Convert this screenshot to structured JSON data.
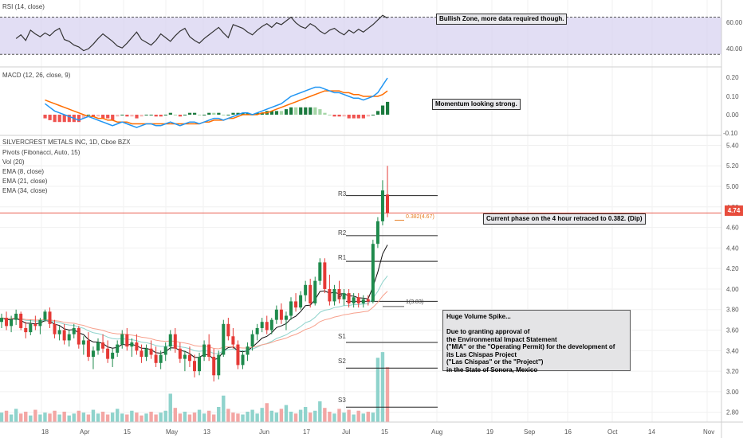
{
  "rsi_panel": {
    "title": "RSI (14, close)",
    "ticks": [
      "60.00",
      "40.00"
    ],
    "annotation": "Bullish Zone, more data required though."
  },
  "macd_panel": {
    "title": "MACD (12, 26, close, 9)",
    "ticks": [
      "0.20",
      "0.10",
      "0.00",
      "-0.10"
    ],
    "annotation": "Momentum looking strong."
  },
  "main_panel": {
    "title": "SILVERCREST METALS INC, 1D, Cboe BZX",
    "studies": [
      "Pivots (Fibonacci, Auto, 15)",
      "Vol (20)",
      "EMA (8, close)",
      "EMA (21, close)",
      "EMA (34, close)"
    ],
    "price_ticks": [
      "5.40",
      "5.20",
      "5.00",
      "4.80",
      "4.60",
      "4.40",
      "4.20",
      "4.00",
      "3.80",
      "3.60",
      "3.40",
      "3.20",
      "3.00",
      "2.80"
    ],
    "current_price": "4.74",
    "fib_label": "0.382(4.67)",
    "fib_low_label": "1(3.83)",
    "pivots": [
      "R3",
      "R2",
      "R1",
      "P",
      "S1",
      "S2",
      "S3"
    ],
    "phase_annotation": "Current phase on the 4 hour retraced to 0.382. (Dip)",
    "note_lines": [
      "Huge Volume Spike...",
      "",
      "Due to granting approval of",
      "the Environmental Impact Statement",
      "(\"MIA\" or the \"Operating Permit) for the development of",
      " its Las Chispas Project",
      "(\"Las Chispas\" or the \"Project\")",
      "in the State of Sonora, Mexico"
    ]
  },
  "time_axis": [
    "18",
    "Apr",
    "15",
    "May",
    "13",
    "Jun",
    "17",
    "Jul",
    "15",
    "Aug",
    "19",
    "Sep",
    "16",
    "Oct",
    "14",
    "Nov"
  ],
  "colors": {
    "up": "#26a69a",
    "down": "#ef5350",
    "macd_line": "#2196f3",
    "signal_line": "#ff6d00",
    "rsi_band": "#d6d0f0",
    "price_line": "#e74c3c"
  },
  "chart_data": {
    "type": "candlestick",
    "symbol": "SILVERCREST METALS INC",
    "interval": "1D",
    "exchange": "Cboe BZX",
    "ylim": [
      2.72,
      5.45
    ],
    "pivot_levels": {
      "R3": 4.91,
      "R2": 4.52,
      "R1": 4.27,
      "P": 3.88,
      "S1": 3.48,
      "S2": 3.23,
      "S3": 2.85
    },
    "fib_levels": [
      {
        "label": "0.382",
        "value": 4.67
      },
      {
        "label": "1",
        "value": 3.83
      }
    ],
    "last_price": 4.74,
    "candles": [
      [
        3.68,
        3.76,
        3.62,
        3.72
      ],
      [
        3.72,
        3.78,
        3.6,
        3.64
      ],
      [
        3.64,
        3.74,
        3.58,
        3.7
      ],
      [
        3.7,
        3.8,
        3.65,
        3.76
      ],
      [
        3.76,
        3.78,
        3.6,
        3.62
      ],
      [
        3.62,
        3.68,
        3.52,
        3.58
      ],
      [
        3.58,
        3.7,
        3.55,
        3.66
      ],
      [
        3.66,
        3.74,
        3.6,
        3.64
      ],
      [
        3.64,
        3.72,
        3.56,
        3.7
      ],
      [
        3.7,
        3.8,
        3.68,
        3.78
      ],
      [
        3.78,
        3.82,
        3.62,
        3.66
      ],
      [
        3.66,
        3.7,
        3.52,
        3.56
      ],
      [
        3.56,
        3.64,
        3.5,
        3.6
      ],
      [
        3.6,
        3.66,
        3.46,
        3.5
      ],
      [
        3.5,
        3.6,
        3.44,
        3.56
      ],
      [
        3.56,
        3.66,
        3.52,
        3.62
      ],
      [
        3.62,
        3.64,
        3.42,
        3.46
      ],
      [
        3.46,
        3.54,
        3.36,
        3.5
      ],
      [
        3.5,
        3.58,
        3.3,
        3.34
      ],
      [
        3.34,
        3.44,
        3.22,
        3.4
      ],
      [
        3.4,
        3.52,
        3.36,
        3.48
      ],
      [
        3.48,
        3.56,
        3.38,
        3.42
      ],
      [
        3.42,
        3.5,
        3.28,
        3.32
      ],
      [
        3.32,
        3.42,
        3.24,
        3.38
      ],
      [
        3.38,
        3.5,
        3.34,
        3.46
      ],
      [
        3.46,
        3.6,
        3.42,
        3.56
      ],
      [
        3.56,
        3.62,
        3.4,
        3.44
      ],
      [
        3.44,
        3.52,
        3.34,
        3.48
      ],
      [
        3.48,
        3.56,
        3.36,
        3.4
      ],
      [
        3.4,
        3.46,
        3.28,
        3.34
      ],
      [
        3.34,
        3.46,
        3.3,
        3.42
      ],
      [
        3.42,
        3.5,
        3.32,
        3.36
      ],
      [
        3.36,
        3.44,
        3.24,
        3.28
      ],
      [
        3.28,
        3.4,
        3.22,
        3.36
      ],
      [
        3.36,
        3.48,
        3.3,
        3.44
      ],
      [
        3.44,
        3.6,
        3.4,
        3.56
      ],
      [
        3.56,
        3.62,
        3.38,
        3.42
      ],
      [
        3.42,
        3.48,
        3.28,
        3.32
      ],
      [
        3.32,
        3.4,
        3.2,
        3.36
      ],
      [
        3.36,
        3.44,
        3.24,
        3.3
      ],
      [
        3.3,
        3.36,
        3.14,
        3.2
      ],
      [
        3.2,
        3.38,
        3.16,
        3.34
      ],
      [
        3.34,
        3.5,
        3.3,
        3.46
      ],
      [
        3.46,
        3.56,
        3.3,
        3.34
      ],
      [
        3.34,
        3.42,
        3.1,
        3.16
      ],
      [
        3.16,
        3.4,
        3.12,
        3.36
      ],
      [
        3.36,
        3.7,
        3.34,
        3.66
      ],
      [
        3.66,
        3.72,
        3.5,
        3.54
      ],
      [
        3.54,
        3.62,
        3.42,
        3.46
      ],
      [
        3.46,
        3.5,
        3.22,
        3.26
      ],
      [
        3.26,
        3.4,
        3.22,
        3.36
      ],
      [
        3.36,
        3.48,
        3.3,
        3.44
      ],
      [
        3.44,
        3.6,
        3.4,
        3.56
      ],
      [
        3.56,
        3.66,
        3.5,
        3.62
      ],
      [
        3.62,
        3.72,
        3.58,
        3.68
      ],
      [
        3.68,
        3.74,
        3.56,
        3.6
      ],
      [
        3.6,
        3.72,
        3.56,
        3.7
      ],
      [
        3.7,
        3.84,
        3.66,
        3.8
      ],
      [
        3.8,
        3.86,
        3.66,
        3.7
      ],
      [
        3.7,
        3.78,
        3.6,
        3.74
      ],
      [
        3.74,
        3.92,
        3.7,
        3.88
      ],
      [
        3.88,
        3.96,
        3.78,
        3.82
      ],
      [
        3.82,
        3.98,
        3.8,
        3.94
      ],
      [
        3.94,
        4.08,
        3.88,
        4.04
      ],
      [
        4.04,
        4.1,
        3.82,
        3.86
      ],
      [
        3.86,
        4.12,
        3.84,
        4.08
      ],
      [
        4.08,
        4.3,
        4.04,
        4.26
      ],
      [
        4.26,
        4.3,
        3.96,
        4.0
      ],
      [
        4.0,
        4.14,
        3.84,
        3.88
      ],
      [
        3.88,
        4.04,
        3.84,
        4.0
      ],
      [
        4.0,
        4.08,
        3.86,
        3.9
      ],
      [
        3.9,
        4.0,
        3.84,
        3.96
      ],
      [
        3.96,
        4.0,
        3.82,
        3.86
      ],
      [
        3.86,
        3.96,
        3.82,
        3.92
      ],
      [
        3.92,
        3.96,
        3.82,
        3.86
      ],
      [
        3.86,
        3.94,
        3.82,
        3.9
      ],
      [
        3.9,
        3.94,
        3.84,
        3.88
      ],
      [
        3.88,
        4.48,
        3.86,
        4.44
      ],
      [
        4.44,
        4.7,
        4.4,
        4.66
      ],
      [
        4.66,
        5.06,
        4.62,
        4.96
      ],
      [
        4.92,
        5.2,
        4.7,
        4.74
      ]
    ],
    "volume": [
      10,
      12,
      8,
      14,
      9,
      11,
      7,
      13,
      8,
      10,
      9,
      12,
      8,
      11,
      7,
      9,
      12,
      10,
      8,
      13,
      9,
      11,
      8,
      10,
      14,
      9,
      8,
      12,
      10,
      7,
      9,
      11,
      8,
      10,
      12,
      30,
      15,
      9,
      11,
      8,
      10,
      13,
      9,
      12,
      8,
      16,
      28,
      14,
      10,
      9,
      8,
      11,
      13,
      9,
      15,
      20,
      12,
      10,
      14,
      18,
      11,
      9,
      13,
      16,
      10,
      12,
      22,
      15,
      11,
      9,
      14,
      10,
      13,
      8,
      12,
      9,
      11,
      10,
      68,
      74,
      58
    ],
    "rsi": [
      47,
      51,
      45,
      56,
      52,
      49,
      53,
      50,
      55,
      58,
      46,
      44,
      40,
      38,
      34,
      36,
      41,
      47,
      52,
      48,
      44,
      39,
      37,
      42,
      48,
      54,
      46,
      43,
      40,
      45,
      52,
      48,
      44,
      50,
      55,
      58,
      49,
      45,
      42,
      47,
      51,
      55,
      59,
      53,
      48,
      62,
      60,
      58,
      54,
      51,
      56,
      60,
      63,
      59,
      64,
      62,
      66,
      70,
      64,
      60,
      58,
      63,
      60,
      55,
      52,
      56,
      58,
      54,
      51,
      56,
      53,
      57,
      54,
      58,
      62,
      67,
      72,
      69
    ],
    "macd": [
      0.06,
      0.04,
      0.02,
      0.01,
      0.0,
      -0.01,
      -0.02,
      -0.03,
      -0.02,
      -0.01,
      -0.02,
      -0.03,
      -0.04,
      -0.05,
      -0.06,
      -0.05,
      -0.04,
      -0.05,
      -0.06,
      -0.07,
      -0.06,
      -0.05,
      -0.05,
      -0.06,
      -0.06,
      -0.05,
      -0.04,
      -0.05,
      -0.06,
      -0.05,
      -0.04,
      -0.04,
      -0.05,
      -0.04,
      -0.03,
      -0.02,
      -0.02,
      -0.03,
      -0.02,
      -0.01,
      0.0,
      0.01,
      0.01,
      0.0,
      0.01,
      0.02,
      0.03,
      0.04,
      0.05,
      0.06,
      0.08,
      0.1,
      0.11,
      0.12,
      0.13,
      0.14,
      0.15,
      0.15,
      0.14,
      0.13,
      0.12,
      0.12,
      0.11,
      0.1,
      0.09,
      0.09,
      0.08,
      0.09,
      0.1,
      0.12,
      0.16,
      0.2
    ],
    "signal": [
      0.08,
      0.07,
      0.06,
      0.05,
      0.04,
      0.03,
      0.02,
      0.01,
      0.0,
      -0.01,
      -0.01,
      -0.02,
      -0.02,
      -0.03,
      -0.03,
      -0.04,
      -0.04,
      -0.04,
      -0.05,
      -0.05,
      -0.05,
      -0.05,
      -0.05,
      -0.05,
      -0.05,
      -0.05,
      -0.05,
      -0.05,
      -0.05,
      -0.05,
      -0.05,
      -0.05,
      -0.05,
      -0.04,
      -0.04,
      -0.03,
      -0.03,
      -0.03,
      -0.02,
      -0.02,
      -0.01,
      0.0,
      0.0,
      0.0,
      0.0,
      0.01,
      0.01,
      0.02,
      0.03,
      0.04,
      0.05,
      0.06,
      0.07,
      0.08,
      0.09,
      0.1,
      0.11,
      0.12,
      0.13,
      0.13,
      0.13,
      0.13,
      0.12,
      0.12,
      0.11,
      0.11,
      0.1,
      0.1,
      0.1,
      0.1,
      0.11,
      0.13
    ]
  }
}
